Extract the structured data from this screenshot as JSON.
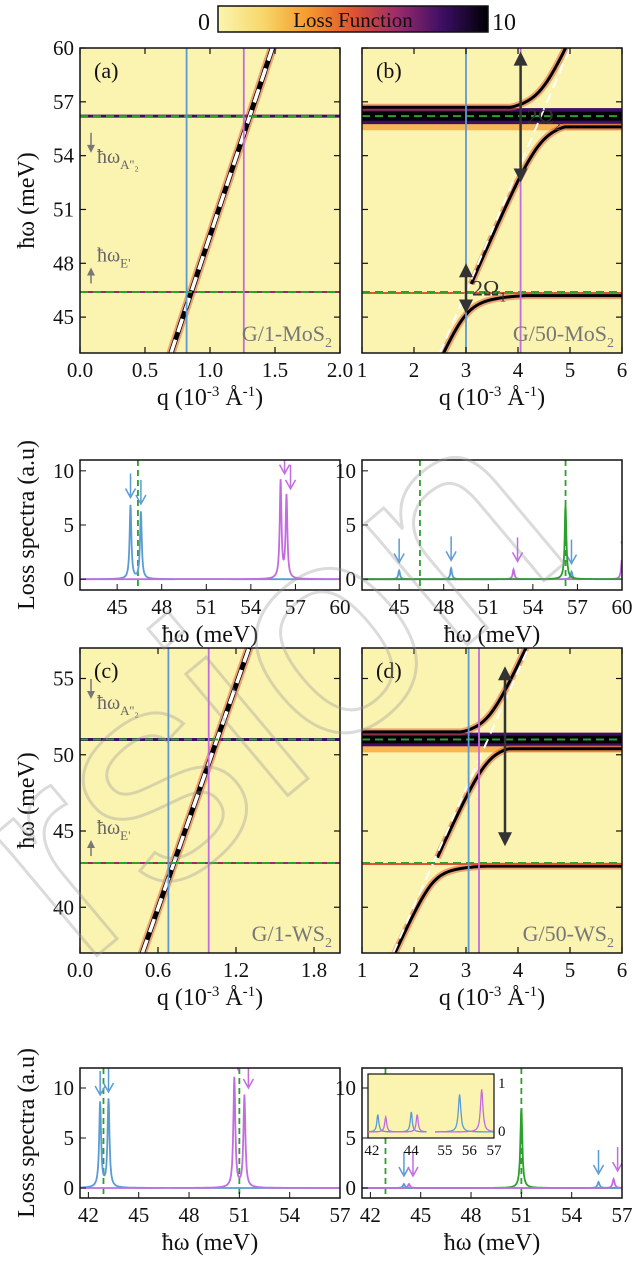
{
  "colorbar": {
    "label": "Loss Function",
    "min_label": "0",
    "max_label": "10",
    "vmin": 0,
    "vmax": 10,
    "stops": [
      "#fbf5b0",
      "#f8d76a",
      "#f59a2e",
      "#e0542f",
      "#9a2a6c",
      "#3c0e64",
      "#000004"
    ]
  },
  "colors": {
    "blue": "#5b9bd5",
    "magenta": "#c36ce0",
    "green": "#2ca02c",
    "white": "#ffffff",
    "gray": "#777777",
    "dark": "#333333"
  },
  "chart_data": [
    {
      "id": "a",
      "type": "heatmap",
      "panel_label": "(a)",
      "material": "G/1-MoS",
      "material_sub": "2",
      "xlabel": "q (10",
      "xlabel_sup": "-3",
      "xlabel_tail": " Å",
      "xlabel_sup2": "-1",
      "xlabel_end": ")",
      "ylabel": "ħω (meV)",
      "xlim": [
        0.0,
        2.0
      ],
      "ylim": [
        43,
        60
      ],
      "xticks": [
        0.0,
        0.5,
        1.0,
        1.5,
        2.0
      ],
      "xticklabels": [
        "0.0",
        "0.5",
        "1.0",
        "1.5",
        "2.0"
      ],
      "yticks": [
        45,
        48,
        51,
        54,
        57,
        60
      ],
      "yticklabels": [
        "45",
        "48",
        "51",
        "54",
        "57",
        "60"
      ],
      "phonon_lines": [
        46.4,
        56.2
      ],
      "light_line": [
        [
          0.7,
          43
        ],
        [
          1.48,
          60
        ]
      ],
      "cut_lines": [
        {
          "q": 0.82,
          "color": "blue"
        },
        {
          "q": 1.26,
          "color": "magenta"
        }
      ],
      "annotations": [
        {
          "text": "ħω",
          "sub": "A''₂",
          "q": 0.1,
          "w": 53.6,
          "arrow": "down"
        },
        {
          "text": "ħω",
          "sub": "E'",
          "q": 0.1,
          "w": 48.1,
          "arrow": "up"
        }
      ]
    },
    {
      "id": "b",
      "type": "heatmap",
      "panel_label": "(b)",
      "material": "G/50-MoS",
      "material_sub": "2",
      "xlabel": "q (10",
      "xlabel_sup": "-3",
      "xlabel_tail": " Å",
      "xlabel_sup2": "-1",
      "xlabel_end": ")",
      "xlim": [
        1,
        6
      ],
      "ylim": [
        43,
        60
      ],
      "xticks": [
        1,
        2,
        3,
        4,
        5,
        6
      ],
      "xticklabels": [
        "1",
        "2",
        "3",
        "4",
        "5",
        "6"
      ],
      "yticks": [
        45,
        48,
        51,
        54,
        57,
        60
      ],
      "yticklabels": [
        "",
        "",
        "",
        "",
        "",
        ""
      ],
      "phonon_lines": [
        46.4,
        56.2
      ],
      "light_line": [
        [
          2.5,
          43
        ],
        [
          5.0,
          60
        ]
      ],
      "cut_lines": [
        {
          "q": 3.0,
          "color": "blue"
        },
        {
          "q": 4.05,
          "color": "magenta"
        }
      ],
      "splittings": [
        {
          "text": "2Ω",
          "sub": "2",
          "q": 4.05,
          "w1": 52.5,
          "w2": 59.8
        },
        {
          "text": "2Ω",
          "sub": "1",
          "q": 3.0,
          "w1": 45.2,
          "w2": 48.0
        }
      ]
    },
    {
      "id": "a_spec",
      "type": "line",
      "ylabel": "Loss spectra (a.u)",
      "xlabel": "ħω (meV)",
      "xlim": [
        42.5,
        60
      ],
      "ylim": [
        -1,
        11
      ],
      "xticks": [
        45,
        48,
        51,
        54,
        57,
        60
      ],
      "xticklabels": [
        "45",
        "48",
        "51",
        "54",
        "57",
        "60"
      ],
      "yticks": [
        0,
        5,
        10
      ],
      "yticklabels": [
        "0",
        "5",
        "10"
      ],
      "dashed": [
        46.4
      ],
      "series": [
        {
          "color": "blue",
          "peaks": [
            [
              45.9,
              6.8
            ],
            [
              46.6,
              6.2
            ]
          ]
        },
        {
          "color": "magenta",
          "peaks": [
            [
              56.0,
              9.0
            ],
            [
              56.4,
              7.6
            ]
          ]
        }
      ]
    },
    {
      "id": "b_spec",
      "type": "line",
      "xlabel": "ħω (meV)",
      "xlim": [
        42.5,
        60
      ],
      "ylim": [
        -1,
        11
      ],
      "xticks": [
        45,
        48,
        51,
        54,
        57,
        60
      ],
      "xticklabels": [
        "45",
        "48",
        "51",
        "54",
        "57",
        "60"
      ],
      "yticks": [
        0,
        5,
        10
      ],
      "yticklabels": [
        "0",
        "5",
        "10"
      ],
      "dashed": [
        46.4,
        56.2
      ],
      "series": [
        {
          "color": "blue",
          "peaks": [
            [
              45.0,
              0.8
            ],
            [
              48.5,
              1.0
            ],
            [
              56.6,
              0.7
            ]
          ]
        },
        {
          "color": "magenta",
          "peaks": [
            [
              52.7,
              0.9
            ],
            [
              60.0,
              1.9
            ]
          ]
        },
        {
          "color": "green",
          "peaks": [
            [
              56.2,
              6.8
            ]
          ]
        }
      ]
    },
    {
      "id": "c",
      "type": "heatmap",
      "panel_label": "(c)",
      "material": "G/1-WS",
      "material_sub": "2",
      "xlabel": "q (10",
      "xlabel_sup": "-3",
      "xlabel_tail": " Å",
      "xlabel_sup2": "-1",
      "xlabel_end": ")",
      "ylabel": "ħω (meV)",
      "xlim": [
        0.0,
        2.0
      ],
      "ylim": [
        37,
        57
      ],
      "xticks": [
        0.0,
        0.6,
        1.2,
        1.8
      ],
      "xticklabels": [
        "0.0",
        "0.6",
        "1.2",
        "1.8"
      ],
      "yticks": [
        40,
        45,
        50,
        55
      ],
      "yticklabels": [
        "40",
        "45",
        "50",
        "55"
      ],
      "phonon_lines": [
        42.9,
        51.0
      ],
      "light_line": [
        [
          0.48,
          37
        ],
        [
          1.3,
          57
        ]
      ],
      "cut_lines": [
        {
          "q": 0.68,
          "color": "blue"
        },
        {
          "q": 0.99,
          "color": "magenta"
        }
      ],
      "annotations": [
        {
          "text": "ħω",
          "sub": "A''₂",
          "q": 0.1,
          "w": 53.0,
          "arrow": "down"
        },
        {
          "text": "ħω",
          "sub": "E'",
          "q": 0.1,
          "w": 44.8,
          "arrow": "up"
        }
      ]
    },
    {
      "id": "d",
      "type": "heatmap",
      "panel_label": "(d)",
      "material": "G/50-WS",
      "material_sub": "2",
      "xlabel": "q (10",
      "xlabel_sup": "-3",
      "xlabel_tail": " Å",
      "xlabel_sup2": "-1",
      "xlabel_end": ")",
      "xlim": [
        1,
        6
      ],
      "ylim": [
        37,
        57
      ],
      "xticks": [
        1,
        2,
        3,
        4,
        5,
        6
      ],
      "xticklabels": [
        "1",
        "2",
        "3",
        "4",
        "5",
        "6"
      ],
      "yticks": [
        40,
        45,
        50,
        55
      ],
      "yticklabels": [
        "",
        "",
        "",
        ""
      ],
      "phonon_lines": [
        42.9,
        51.0
      ],
      "light_line": [
        [
          1.6,
          37
        ],
        [
          4.2,
          57
        ]
      ],
      "cut_lines": [
        {
          "q": 3.05,
          "color": "blue"
        },
        {
          "q": 3.25,
          "color": "magenta"
        }
      ],
      "splittings": [
        {
          "text": "",
          "sub": "",
          "q": 3.75,
          "w1": 44.0,
          "w2": 55.8
        }
      ]
    },
    {
      "id": "c_spec",
      "type": "line",
      "ylabel": "Loss spectra (a.u)",
      "xlabel": "ħω (meV)",
      "xlim": [
        41.5,
        57
      ],
      "ylim": [
        -1,
        12
      ],
      "xticks": [
        42,
        45,
        48,
        51,
        54,
        57
      ],
      "xticklabels": [
        "42",
        "45",
        "48",
        "51",
        "54",
        "57"
      ],
      "yticks": [
        0,
        5,
        10
      ],
      "yticklabels": [
        "0",
        "5",
        "10"
      ],
      "dashed": [
        42.9,
        51.0
      ],
      "series": [
        {
          "color": "blue",
          "peaks": [
            [
              42.7,
              8.5
            ],
            [
              43.2,
              8.8
            ]
          ]
        },
        {
          "color": "magenta",
          "peaks": [
            [
              50.7,
              11.0
            ],
            [
              51.3,
              9.2
            ]
          ]
        }
      ]
    },
    {
      "id": "d_spec",
      "type": "line",
      "xlabel": "ħω (meV)",
      "xlim": [
        41.5,
        57
      ],
      "ylim": [
        -1,
        12
      ],
      "xticks": [
        42,
        45,
        48,
        51,
        54,
        57
      ],
      "xticklabels": [
        "42",
        "45",
        "48",
        "51",
        "54",
        "57"
      ],
      "yticks": [
        0,
        5,
        10
      ],
      "yticklabels": [
        "0",
        "5",
        "10"
      ],
      "dashed": [
        42.9,
        51.0
      ],
      "series": [
        {
          "color": "green",
          "peaks": [
            [
              51.0,
              8.0
            ]
          ]
        },
        {
          "color": "blue",
          "peaks": [
            [
              44.0,
              0.4
            ],
            [
              55.6,
              0.6
            ]
          ]
        },
        {
          "color": "magenta",
          "peaks": [
            [
              44.3,
              0.4
            ],
            [
              56.5,
              0.9
            ]
          ]
        }
      ],
      "inset": {
        "xticklabels": [
          "42",
          "44",
          "55",
          "56",
          "57"
        ],
        "yticklabels": [
          "0",
          "1"
        ],
        "peaks_left": [
          [
            42.3,
            0.35,
            "blue"
          ],
          [
            42.7,
            0.3,
            "magenta"
          ],
          [
            44.0,
            0.4,
            "blue"
          ],
          [
            44.3,
            0.35,
            "magenta"
          ]
        ],
        "peaks_right": [
          [
            55.6,
            0.75,
            "blue"
          ],
          [
            56.5,
            0.85,
            "magenta"
          ]
        ]
      }
    }
  ]
}
